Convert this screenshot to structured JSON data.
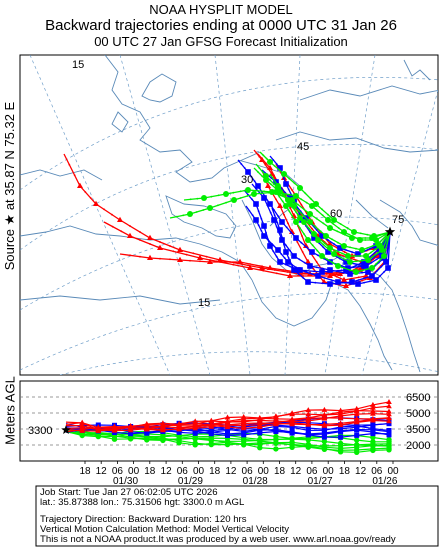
{
  "header": {
    "line1": "NOAA HYSPLIT MODEL",
    "line2": "Backward trajectories ending at 0000 UTC 31 Jan 26",
    "line3": "00 UTC 27 Jan    GFSG  Forecast Initialization"
  },
  "source_label": "Source ★ at   35.87 N   75.32 E",
  "map": {
    "lat_labels": [
      "15",
      "30",
      "45",
      "60",
      "75",
      "15"
    ],
    "endpoint": {
      "lat": 35.87,
      "lon": 75.32
    }
  },
  "vertical": {
    "axis_label": "Meters AGL",
    "start_height_label": "3300",
    "y_ticks": [
      "6500",
      "5000",
      "3500",
      "2000"
    ],
    "hour_labels": [
      "18",
      "12",
      "06",
      "00",
      "18",
      "12",
      "06",
      "00",
      "18",
      "12",
      "06",
      "00",
      "18",
      "12",
      "06",
      "00",
      "18",
      "12",
      "06",
      "00"
    ],
    "date_labels": [
      "01/30",
      "01/29",
      "01/28",
      "01/27",
      "01/26"
    ]
  },
  "info": {
    "job_start": "Job Start: Tue Jan 27 06:02:05 UTC 2026",
    "location": "lat.: 35.87388   lon.: 75.31506    hgt: 3300.0 m AGL",
    "direction": "Trajectory Direction: Backward        Duration: 120 hrs",
    "vertical_method": "Vertical Motion Calculation Method: Model Vertical Velocity",
    "disclaimer": "This is not a NOAA product.It was produced by a web user. www.arl.noaa.gov/ready"
  },
  "colors": {
    "red": "#ff0000",
    "blue": "#0000ff",
    "green": "#00ee00",
    "map": "#5a8ab8",
    "grid": "#6f9ec9"
  }
}
